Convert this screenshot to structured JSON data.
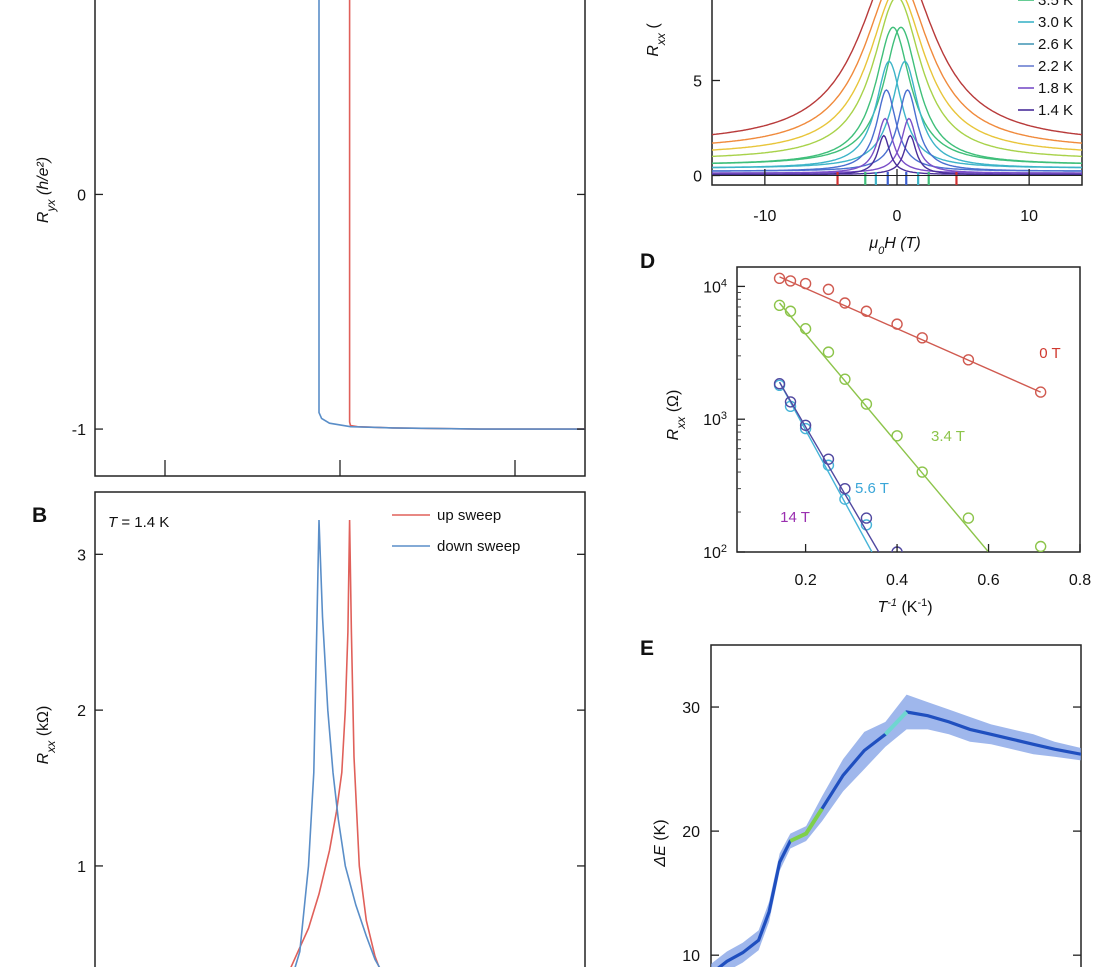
{
  "chart_data": [
    {
      "panel": "A",
      "type": "line",
      "ylabel_main": "R",
      "ylabel_sub": "yx",
      "ylabel_unit": " (h/e²)",
      "ylim": [
        -1.2,
        0.85
      ],
      "yticks": [
        0,
        -1
      ],
      "ytick_labels": [
        "0",
        "-1"
      ],
      "xlim": [
        -14,
        14
      ],
      "xticks": [
        -10,
        0,
        10
      ],
      "series": [
        {
          "key": "up",
          "color": "#e0605a",
          "x": [
            0.55,
            0.55,
            0.6,
            1.0,
            3.0,
            8.0,
            14.0
          ],
          "y": [
            0.85,
            -0.97,
            -0.985,
            -0.99,
            -0.995,
            -1.0,
            -1.0
          ]
        },
        {
          "key": "down",
          "color": "#5a8ec8",
          "x": [
            -1.2,
            -1.2,
            -1.05,
            -0.6,
            0.6,
            3.0,
            8.0,
            14.0
          ],
          "y": [
            0.85,
            -0.93,
            -0.955,
            -0.975,
            -0.99,
            -0.995,
            -1.0,
            -1.0
          ]
        }
      ]
    },
    {
      "panel": "B",
      "type": "line",
      "letter": "B",
      "annotation_main": "T",
      "annotation_rest": " = 1.4 K",
      "ylabel_main": "R",
      "ylabel_sub": "xx",
      "ylabel_unit": " (kΩ)",
      "ylim": [
        0.3,
        3.4
      ],
      "yticks": [
        1,
        2,
        3
      ],
      "ytick_labels": [
        "1",
        "2",
        "3"
      ],
      "xlim": [
        -14,
        14
      ],
      "legend": [
        "up sweep",
        "down sweep"
      ],
      "series": [
        {
          "key": "up",
          "name": "up sweep",
          "color": "#e0605a",
          "x": [
            -3.0,
            -2.4,
            -1.8,
            -1.2,
            -0.6,
            -0.2,
            0.1,
            0.3,
            0.45,
            0.55,
            0.65,
            0.8,
            1.1,
            1.5,
            2.0,
            2.4
          ],
          "y": [
            0.3,
            0.45,
            0.6,
            0.82,
            1.1,
            1.35,
            1.6,
            2.0,
            2.5,
            3.22,
            2.5,
            1.7,
            1.0,
            0.65,
            0.42,
            0.3
          ]
        },
        {
          "key": "down",
          "name": "down sweep",
          "color": "#5a8ec8",
          "x": [
            -2.7,
            -2.3,
            -1.8,
            -1.5,
            -1.35,
            -1.2,
            -1.0,
            -0.7,
            -0.4,
            -0.1,
            0.3,
            0.9,
            1.5,
            2.0,
            2.5
          ],
          "y": [
            0.3,
            0.45,
            1.0,
            1.6,
            2.4,
            3.22,
            2.6,
            2.0,
            1.6,
            1.3,
            1.0,
            0.75,
            0.55,
            0.4,
            0.3
          ]
        }
      ]
    },
    {
      "panel": "C",
      "type": "line",
      "ylabel_main": "R",
      "ylabel_sub": "xx",
      "ylabel_unit": " (",
      "xlabel_main": "μ",
      "xlabel_sub": "0",
      "xlabel_rest": "H (T)",
      "xlim": [
        -14,
        14
      ],
      "xticks": [
        -10,
        0,
        10
      ],
      "xtick_labels": [
        "-10",
        "0",
        "10"
      ],
      "ylim": [
        -0.5,
        9.5
      ],
      "yticks": [
        0,
        5
      ],
      "ytick_labels": [
        "0",
        "5"
      ],
      "legend": [
        "3.5 K",
        "3.0 K",
        "2.6 K",
        "2.2 K",
        "1.8 K",
        "1.4 K"
      ],
      "series": [
        {
          "color": "#b83a3a",
          "peak": 11.5,
          "base": 1.6,
          "width": 3.4,
          "center": 0
        },
        {
          "color": "#f08a3c",
          "peak": 10.5,
          "base": 1.3,
          "width": 3.0,
          "center": 0
        },
        {
          "color": "#e8c53a",
          "peak": 9.8,
          "base": 1.05,
          "width": 2.6,
          "center": 0
        },
        {
          "color": "#a8d24a",
          "peak": 9.4,
          "base": 0.8,
          "width": 2.2,
          "center": 0
        },
        {
          "color": "#3fbf7a",
          "peak": 7.8,
          "base": 0.55,
          "width": 1.6,
          "center": 0.3
        },
        {
          "color": "#3fbf7a",
          "peak": 7.8,
          "base": 0.55,
          "width": 1.6,
          "center": -0.3
        },
        {
          "color": "#3db4c8",
          "peak": 6.0,
          "base": 0.38,
          "width": 1.2,
          "center": 0.6
        },
        {
          "color": "#3db4c8",
          "peak": 6.0,
          "base": 0.38,
          "width": 1.2,
          "center": -0.6
        },
        {
          "color": "#4a6fd0",
          "peak": 4.5,
          "base": 0.22,
          "width": 0.9,
          "center": 0.8
        },
        {
          "color": "#4a6fd0",
          "peak": 4.5,
          "base": 0.22,
          "width": 0.9,
          "center": -0.8
        },
        {
          "color": "#7a4fc8",
          "peak": 3.0,
          "base": 0.12,
          "width": 0.7,
          "center": 0.9
        },
        {
          "color": "#7a4fc8",
          "peak": 3.0,
          "base": 0.12,
          "width": 0.7,
          "center": -0.9
        },
        {
          "color": "#4a2f9a",
          "peak": 2.1,
          "base": 0.05,
          "width": 0.55,
          "center": 1.0
        },
        {
          "color": "#4a2f9a",
          "peak": 2.1,
          "base": 0.05,
          "width": 0.55,
          "center": -1.0
        }
      ],
      "legend_colors": [
        "#3fbf7a",
        "#3db4c8",
        "#4a9ab8",
        "#6a7fd0",
        "#7a4fc8",
        "#4a2f9a"
      ],
      "markers": [
        {
          "x": -4.5,
          "color": "#d03030"
        },
        {
          "x": -2.4,
          "color": "#3fbf7a"
        },
        {
          "x": -1.6,
          "color": "#3db4c8"
        },
        {
          "x": -0.7,
          "color": "#3a5fd0"
        },
        {
          "x": 0.7,
          "color": "#3a5fd0"
        },
        {
          "x": 1.6,
          "color": "#3db4c8"
        },
        {
          "x": 2.4,
          "color": "#3fbf7a"
        },
        {
          "x": 4.5,
          "color": "#d03030"
        }
      ]
    },
    {
      "panel": "D",
      "type": "scatter",
      "letter": "D",
      "yscale": "log",
      "ylim": [
        100,
        14000
      ],
      "yticks": [
        100,
        1000,
        10000
      ],
      "ytick_bases": [
        "10",
        "10",
        "10"
      ],
      "ytick_exps": [
        "2",
        "3",
        "4"
      ],
      "xlim": [
        0.05,
        0.8
      ],
      "xticks": [
        0.2,
        0.4,
        0.6,
        0.8
      ],
      "xtick_labels": [
        "0.2",
        "0.4",
        "0.6",
        "0.8"
      ],
      "ylabel_main": "R",
      "ylabel_sub": "xx",
      "ylabel_unit": " (Ω)",
      "xlabel_main": "T",
      "xlabel_sup": "-1",
      "xlabel_rest": " (K",
      "xlabel_rest_sup": "-1",
      "xlabel_end": ")",
      "series": [
        {
          "name": "0 T",
          "color": "#d05a50",
          "x": [
            0.143,
            0.167,
            0.2,
            0.25,
            0.286,
            0.333,
            0.4,
            0.455,
            0.556,
            0.714
          ],
          "y": [
            11500,
            11000,
            10500,
            9500,
            7500,
            6500,
            5200,
            4100,
            2800,
            1600
          ],
          "fit": [
            [
              0.143,
              11800
            ],
            [
              0.714,
              1600
            ]
          ]
        },
        {
          "name": "3.4 T",
          "color": "#8cc44a",
          "x": [
            0.143,
            0.167,
            0.2,
            0.25,
            0.286,
            0.333,
            0.4,
            0.455,
            0.556,
            0.714
          ],
          "y": [
            7200,
            6500,
            4800,
            3200,
            2000,
            1300,
            750,
            400,
            180,
            110
          ],
          "fit": [
            [
              0.143,
              7500
            ],
            [
              0.6,
              100
            ]
          ]
        },
        {
          "name": "5.6 T",
          "color": "#46b4d8",
          "x": [
            0.143,
            0.167,
            0.2,
            0.25,
            0.286,
            0.333,
            0.4
          ],
          "y": [
            1800,
            1250,
            850,
            450,
            250,
            160,
            90
          ],
          "fit": [
            [
              0.143,
              1900
            ],
            [
              0.345,
              100
            ]
          ]
        },
        {
          "name": "14 T",
          "color": "#5048a0",
          "x": [
            0.143,
            0.167,
            0.2,
            0.25,
            0.286,
            0.333,
            0.4
          ],
          "y": [
            1850,
            1350,
            900,
            500,
            300,
            180,
            100
          ],
          "fit": [
            [
              0.143,
              1900
            ],
            [
              0.36,
              100
            ]
          ]
        }
      ],
      "label_colors": {
        "0 T": "#d0392f",
        "3.4 T": "#8cc44a",
        "5.6 T": "#3aa6d8",
        "14 T": "#9a2fb0"
      }
    },
    {
      "panel": "E",
      "type": "area",
      "letter": "E",
      "ylabel_main": "ΔE",
      "ylabel_unit": " (K)",
      "xlim": [
        0,
        14
      ],
      "ylim": [
        8,
        35
      ],
      "yticks": [
        10,
        20,
        30
      ],
      "ytick_labels": [
        "10",
        "20",
        "30"
      ],
      "x": [
        0,
        0.6,
        1.2,
        1.8,
        2.2,
        2.6,
        3.0,
        3.6,
        4.2,
        5.0,
        5.8,
        6.6,
        7.4,
        8.2,
        9.0,
        9.8,
        10.6,
        11.4,
        12.2,
        13.0,
        14.0
      ],
      "y": [
        8.5,
        9.5,
        10.2,
        11.2,
        13.5,
        17.5,
        19.2,
        19.8,
        21.8,
        24.5,
        26.5,
        27.8,
        29.6,
        29.3,
        28.8,
        28.2,
        27.8,
        27.4,
        27.0,
        26.6,
        26.2
      ],
      "y_upper": [
        9.3,
        10.3,
        11.0,
        12.0,
        14.3,
        18.2,
        19.8,
        20.4,
        22.8,
        25.8,
        28.0,
        28.8,
        31.0,
        30.4,
        29.8,
        29.2,
        28.6,
        28.2,
        27.8,
        27.2,
        26.7
      ],
      "y_lower": [
        7.8,
        8.7,
        9.4,
        10.4,
        12.7,
        16.8,
        18.6,
        19.2,
        20.8,
        23.2,
        25.0,
        26.8,
        28.2,
        28.2,
        27.8,
        27.2,
        27.0,
        26.6,
        26.2,
        26.0,
        25.7
      ],
      "line_color": "#1f4fbf",
      "band_color": "#7f9fe6",
      "highlights": [
        {
          "x0": 3.3,
          "x1": 4.1,
          "color": "#7ed04a"
        },
        {
          "x0": 6.8,
          "x1": 7.4,
          "color": "#6fd6d0"
        }
      ]
    }
  ]
}
